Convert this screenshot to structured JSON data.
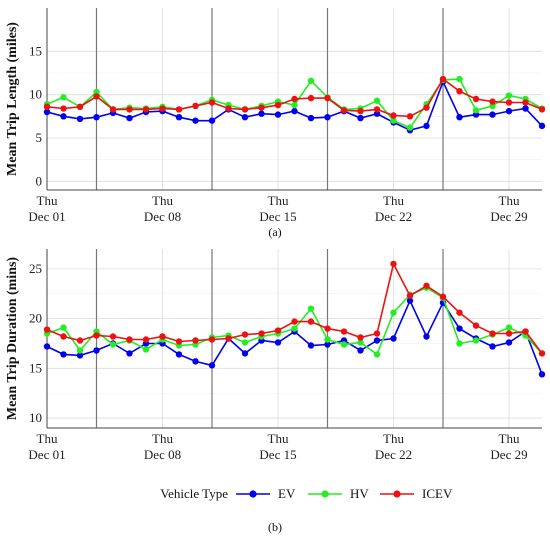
{
  "figure": {
    "legend_title": "Vehicle Type",
    "panel_labels": [
      "(a)",
      "(b)"
    ]
  },
  "chart_data": [
    {
      "type": "line",
      "ylabel": "Mean Trip Length (miles)",
      "xlabel": "",
      "ylim": [
        -1,
        20
      ],
      "yticks": [
        0,
        5,
        10,
        15
      ],
      "x_start": "2022-12-01",
      "x_end": "2022-12-31",
      "xticks": [
        {
          "date": "2022-12-01",
          "line1": "Thu",
          "line2": "Dec 01"
        },
        {
          "date": "2022-12-08",
          "line1": "Thu",
          "line2": "Dec 08"
        },
        {
          "date": "2022-12-15",
          "line1": "Thu",
          "line2": "Dec 15"
        },
        {
          "date": "2022-12-22",
          "line1": "Thu",
          "line2": "Dec 22"
        },
        {
          "date": "2022-12-29",
          "line1": "Thu",
          "line2": "Dec 29"
        }
      ],
      "week_separators": [
        "2022-12-04",
        "2022-12-11",
        "2022-12-18",
        "2022-12-25"
      ],
      "grid": true,
      "x": [
        "2022-12-01",
        "2022-12-02",
        "2022-12-03",
        "2022-12-04",
        "2022-12-05",
        "2022-12-06",
        "2022-12-07",
        "2022-12-08",
        "2022-12-09",
        "2022-12-10",
        "2022-12-11",
        "2022-12-12",
        "2022-12-13",
        "2022-12-14",
        "2022-12-15",
        "2022-12-16",
        "2022-12-17",
        "2022-12-18",
        "2022-12-19",
        "2022-12-20",
        "2022-12-21",
        "2022-12-22",
        "2022-12-23",
        "2022-12-24",
        "2022-12-25",
        "2022-12-26",
        "2022-12-27",
        "2022-12-28",
        "2022-12-29",
        "2022-12-30",
        "2022-12-31"
      ],
      "series": [
        {
          "name": "EV",
          "color": "#0000ee",
          "values": [
            8.0,
            7.5,
            7.2,
            7.4,
            7.9,
            7.3,
            8.0,
            8.1,
            7.4,
            7.0,
            7.0,
            8.3,
            7.4,
            7.8,
            7.7,
            8.1,
            7.3,
            7.4,
            8.1,
            7.3,
            7.8,
            6.8,
            5.9,
            6.4,
            11.5,
            7.4,
            7.7,
            7.7,
            8.1,
            8.4,
            6.4
          ]
        },
        {
          "name": "HV",
          "color": "#22ee22",
          "values": [
            8.9,
            9.7,
            8.6,
            10.3,
            8.3,
            8.5,
            8.4,
            8.6,
            8.3,
            8.7,
            9.4,
            8.8,
            8.3,
            8.7,
            9.2,
            8.8,
            11.6,
            9.7,
            8.3,
            8.4,
            9.3,
            7.0,
            6.2,
            8.9,
            11.7,
            11.8,
            8.2,
            8.7,
            9.9,
            9.5,
            8.4
          ]
        },
        {
          "name": "ICEV",
          "color": "#ee1111",
          "values": [
            8.6,
            8.4,
            8.6,
            9.8,
            8.3,
            8.3,
            8.3,
            8.4,
            8.3,
            8.7,
            9.1,
            8.4,
            8.3,
            8.5,
            8.8,
            9.5,
            9.6,
            9.6,
            8.2,
            8.1,
            8.3,
            7.6,
            7.5,
            8.5,
            11.8,
            10.4,
            9.5,
            9.2,
            9.1,
            9.1,
            8.3
          ]
        }
      ]
    },
    {
      "type": "line",
      "ylabel": "Mean Trip Duration (mins)",
      "xlabel": "",
      "ylim": [
        9,
        27
      ],
      "yticks": [
        10,
        15,
        20,
        25
      ],
      "x_start": "2022-12-01",
      "x_end": "2022-12-31",
      "xticks": [
        {
          "date": "2022-12-01",
          "line1": "Thu",
          "line2": "Dec 01"
        },
        {
          "date": "2022-12-08",
          "line1": "Thu",
          "line2": "Dec 08"
        },
        {
          "date": "2022-12-15",
          "line1": "Thu",
          "line2": "Dec 15"
        },
        {
          "date": "2022-12-22",
          "line1": "Thu",
          "line2": "Dec 22"
        },
        {
          "date": "2022-12-29",
          "line1": "Thu",
          "line2": "Dec 29"
        }
      ],
      "week_separators": [
        "2022-12-04",
        "2022-12-11",
        "2022-12-18",
        "2022-12-25"
      ],
      "grid": true,
      "x": [
        "2022-12-01",
        "2022-12-02",
        "2022-12-03",
        "2022-12-04",
        "2022-12-05",
        "2022-12-06",
        "2022-12-07",
        "2022-12-08",
        "2022-12-09",
        "2022-12-10",
        "2022-12-11",
        "2022-12-12",
        "2022-12-13",
        "2022-12-14",
        "2022-12-15",
        "2022-12-16",
        "2022-12-17",
        "2022-12-18",
        "2022-12-19",
        "2022-12-20",
        "2022-12-21",
        "2022-12-22",
        "2022-12-23",
        "2022-12-24",
        "2022-12-25",
        "2022-12-26",
        "2022-12-27",
        "2022-12-28",
        "2022-12-29",
        "2022-12-30",
        "2022-12-31"
      ],
      "series": [
        {
          "name": "EV",
          "color": "#0000ee",
          "values": [
            17.2,
            16.4,
            16.3,
            16.8,
            17.5,
            16.5,
            17.5,
            17.5,
            16.4,
            15.7,
            15.3,
            18.0,
            16.5,
            17.8,
            17.6,
            18.7,
            17.3,
            17.4,
            17.8,
            16.8,
            17.8,
            18.0,
            21.8,
            18.2,
            21.6,
            19.0,
            18.0,
            17.2,
            17.6,
            18.7,
            14.4
          ]
        },
        {
          "name": "HV",
          "color": "#22ee22",
          "values": [
            18.5,
            19.1,
            16.8,
            18.7,
            17.4,
            17.8,
            16.9,
            17.9,
            17.3,
            17.4,
            18.1,
            18.3,
            17.6,
            18.2,
            18.5,
            19.0,
            21.0,
            17.9,
            17.4,
            17.6,
            16.4,
            20.6,
            22.4,
            23.1,
            22.1,
            17.5,
            17.8,
            18.4,
            19.1,
            18.3,
            16.5
          ]
        },
        {
          "name": "ICEV",
          "color": "#ee1111",
          "values": [
            18.9,
            18.2,
            17.8,
            18.3,
            18.2,
            17.9,
            17.9,
            18.2,
            17.7,
            17.8,
            17.9,
            18.0,
            18.4,
            18.5,
            18.8,
            19.7,
            19.7,
            19.0,
            18.7,
            18.1,
            18.5,
            25.5,
            22.3,
            23.3,
            22.2,
            20.6,
            19.3,
            18.5,
            18.5,
            18.7,
            16.5
          ]
        }
      ]
    }
  ]
}
